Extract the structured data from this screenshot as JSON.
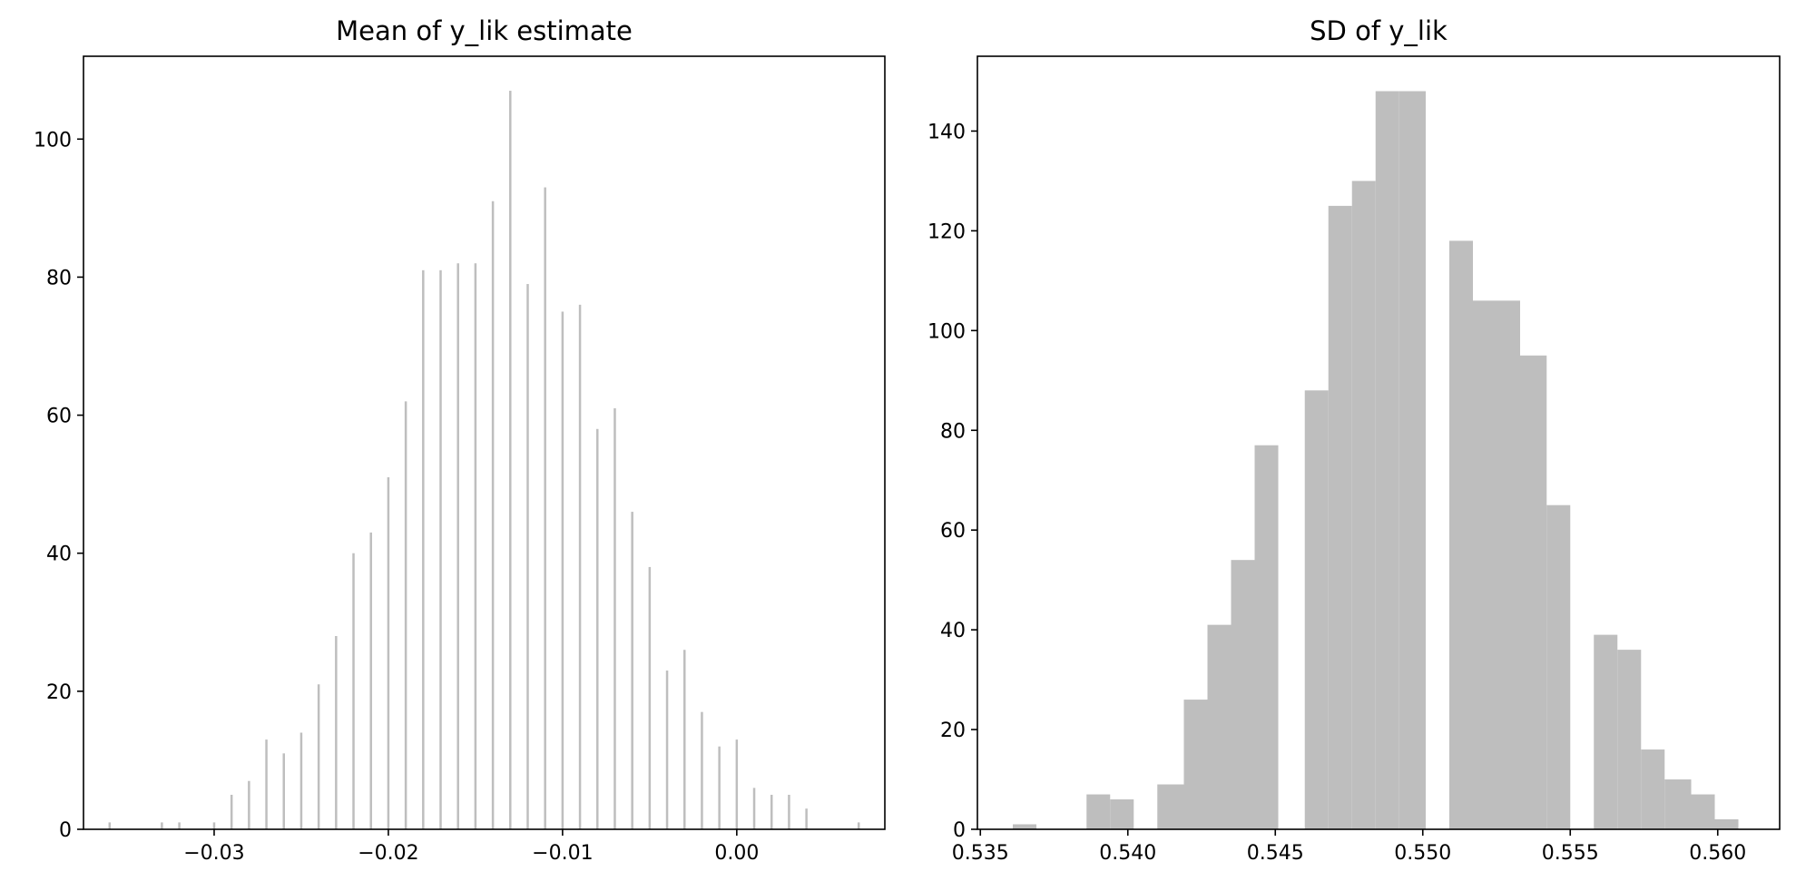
{
  "colors": {
    "bar": "#bebebe",
    "axes": "#000000",
    "background": "#ffffff"
  },
  "chart_data": [
    {
      "type": "bar",
      "title": "Mean of y_lik estimate",
      "xlabel": "",
      "ylabel": "",
      "xlim": [
        -0.0375,
        0.0085
      ],
      "ylim": [
        0,
        112
      ],
      "grid": false,
      "bar_width": 0.00013,
      "x_ticks": [
        -0.03,
        -0.02,
        -0.01,
        0.0
      ],
      "x_tick_labels": [
        "−0.03",
        "−0.02",
        "−0.01",
        "0.00"
      ],
      "y_ticks": [
        0,
        20,
        40,
        60,
        80,
        100
      ],
      "y_tick_labels": [
        "0",
        "20",
        "40",
        "60",
        "80",
        "100"
      ],
      "x": [
        -0.036,
        -0.033,
        -0.032,
        -0.03,
        -0.029,
        -0.028,
        -0.027,
        -0.026,
        -0.025,
        -0.024,
        -0.023,
        -0.022,
        -0.021,
        -0.02,
        -0.019,
        -0.018,
        -0.017,
        -0.016,
        -0.015,
        -0.014,
        -0.013,
        -0.012,
        -0.011,
        -0.01,
        -0.009,
        -0.008,
        -0.007,
        -0.006,
        -0.005,
        -0.004,
        -0.003,
        -0.002,
        -0.001,
        0.0,
        0.001,
        0.002,
        0.003,
        0.004,
        0.007
      ],
      "values": [
        1,
        1,
        1,
        1,
        5,
        7,
        13,
        11,
        14,
        21,
        28,
        40,
        43,
        51,
        62,
        81,
        81,
        82,
        82,
        91,
        107,
        79,
        93,
        75,
        76,
        58,
        61,
        46,
        38,
        23,
        26,
        17,
        12,
        13,
        6,
        5,
        5,
        3,
        1
      ]
    },
    {
      "type": "bar",
      "title": "SD of y_lik",
      "xlabel": "",
      "ylabel": "",
      "xlim": [
        0.5349,
        0.5621
      ],
      "ylim": [
        0,
        155
      ],
      "grid": false,
      "x_ticks": [
        0.535,
        0.54,
        0.545,
        0.55,
        0.555,
        0.56
      ],
      "x_tick_labels": [
        "0.535",
        "0.540",
        "0.545",
        "0.550",
        "0.555",
        "0.560"
      ],
      "y_ticks": [
        0,
        20,
        40,
        60,
        80,
        100,
        120,
        140
      ],
      "y_tick_labels": [
        "0",
        "20",
        "40",
        "60",
        "80",
        "100",
        "120",
        "140"
      ],
      "bin_edges": [
        0.5361,
        0.5369,
        0.5378,
        0.5386,
        0.5394,
        0.5402,
        0.541,
        0.5419,
        0.5427,
        0.5435,
        0.5443,
        0.5451,
        0.546,
        0.5468,
        0.5476,
        0.5484,
        0.5492,
        0.5501,
        0.5509,
        0.5517,
        0.5525,
        0.5533,
        0.5542,
        0.555,
        0.5558,
        0.5566,
        0.5574,
        0.5582,
        0.5591,
        0.5599,
        0.5607
      ],
      "values": [
        1,
        0,
        0,
        7,
        6,
        0,
        9,
        26,
        41,
        54,
        77,
        0,
        88,
        125,
        130,
        148,
        148,
        0,
        118,
        106,
        106,
        95,
        65,
        0,
        39,
        36,
        16,
        10,
        7,
        2
      ]
    }
  ]
}
